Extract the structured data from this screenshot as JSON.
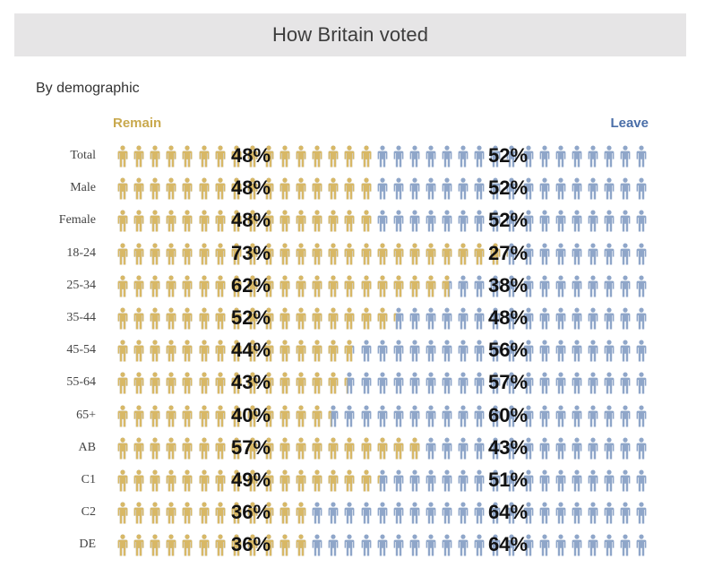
{
  "header": {
    "title": "How Britain voted"
  },
  "subtitle": "By demographic",
  "colors": {
    "remain": "#d8b866",
    "leave": "#8fa6c9",
    "remain_label": "#c9a94e",
    "leave_label": "#4a6ea8"
  },
  "chart_data": {
    "type": "bar",
    "subtype": "pictogram-stacked-100",
    "title": "How Britain voted",
    "subtitle": "By demographic",
    "legend": [
      "Remain",
      "Leave"
    ],
    "legend_placement": "top",
    "icons_per_row": 33,
    "categories": [
      "Total",
      "Male",
      "Female",
      "18-24",
      "25-34",
      "35-44",
      "45-54",
      "55-64",
      "65+",
      "AB",
      "C1",
      "C2",
      "DE"
    ],
    "series": [
      {
        "name": "Remain",
        "values": [
          48,
          48,
          48,
          73,
          62,
          52,
          44,
          43,
          40,
          57,
          49,
          36,
          36
        ]
      },
      {
        "name": "Leave",
        "values": [
          52,
          52,
          52,
          27,
          38,
          48,
          56,
          57,
          60,
          43,
          51,
          64,
          64
        ]
      }
    ],
    "labels": {
      "remain": [
        "48%",
        "48%",
        "48%",
        "73%",
        "62%",
        "52%",
        "44%",
        "43%",
        "40%",
        "57%",
        "49%",
        "36%",
        "36%"
      ],
      "leave": [
        "52%",
        "52%",
        "52%",
        "27%",
        "38%",
        "48%",
        "56%",
        "57%",
        "60%",
        "43%",
        "51%",
        "64%",
        "64%"
      ]
    },
    "unit": "%",
    "ylim": [
      0,
      100
    ]
  }
}
